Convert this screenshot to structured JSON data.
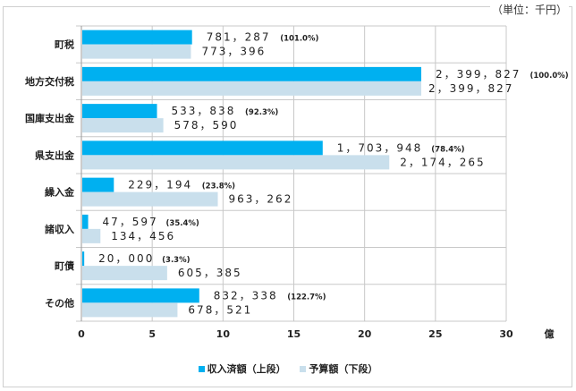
{
  "unit_note": "（単位：千円）",
  "chart_data": {
    "type": "bar",
    "orientation": "horizontal",
    "categories": [
      "町税",
      "地方交付税",
      "国庫支出金",
      "県支出金",
      "繰入金",
      "諸収入",
      "町債",
      "その他"
    ],
    "series": [
      {
        "name": "収入済額（上段）",
        "color": "#00b0f0",
        "values": [
          781287,
          2399827,
          533838,
          1703948,
          229194,
          47597,
          20000,
          832338
        ],
        "labels": [
          "781，287",
          "2，399，827",
          "533，838",
          "1，703，948",
          "229，194",
          "47，597",
          "20，000",
          "832，338"
        ],
        "percent_labels": [
          "(101.0%)",
          "(100.0%)",
          "(92.3%)",
          "(78.4%)",
          "(23.8%)",
          "(35.4%)",
          "(3.3%)",
          "(122.7%)"
        ]
      },
      {
        "name": "予算額（下段）",
        "color": "#c9dfec",
        "values": [
          773396,
          2399827,
          578590,
          2174265,
          963262,
          134456,
          605385,
          678521
        ],
        "labels": [
          "773，396",
          "2，399，827",
          "578，590",
          "2，174，265",
          "963，262",
          "134，456",
          "605，385",
          "678，521"
        ]
      }
    ],
    "xlim": [
      0,
      30
    ],
    "x_ticks": [
      "0",
      "5",
      "10",
      "15",
      "20",
      "25",
      "30"
    ],
    "x_unit": "億",
    "grid": "vertical",
    "legend": "bottom"
  }
}
